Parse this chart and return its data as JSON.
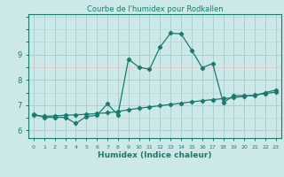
{
  "title": "Courbe de l'humidex pour Rodkallen",
  "xlabel": "Humidex (Indice chaleur)",
  "background_color": "#cce8e8",
  "line_color": "#1a7a6e",
  "grid_color_major": "#aad0d0",
  "grid_color_minor": "#e8c0c0",
  "xlim": [
    -0.5,
    23.5
  ],
  "ylim": [
    5.7,
    10.6
  ],
  "yticks": [
    6,
    7,
    8,
    9
  ],
  "curve1_x": [
    0,
    1,
    2,
    3,
    4,
    5,
    6,
    7,
    8,
    9,
    10,
    11,
    12,
    13,
    14,
    15,
    16,
    17,
    18,
    19,
    20,
    21,
    22,
    23
  ],
  "curve1_y": [
    6.65,
    6.52,
    6.52,
    6.52,
    6.28,
    6.55,
    6.6,
    7.05,
    6.62,
    8.82,
    8.5,
    8.42,
    9.3,
    9.85,
    9.82,
    9.18,
    8.48,
    8.65,
    7.1,
    7.38,
    7.38,
    7.38,
    7.5,
    7.6
  ],
  "curve2_x": [
    0,
    1,
    2,
    3,
    4,
    5,
    6,
    7,
    8,
    9,
    10,
    11,
    12,
    13,
    14,
    15,
    16,
    17,
    18,
    19,
    20,
    21,
    22,
    23
  ],
  "curve2_y": [
    6.6,
    6.56,
    6.58,
    6.6,
    6.62,
    6.64,
    6.67,
    6.7,
    6.75,
    6.82,
    6.88,
    6.93,
    6.98,
    7.03,
    7.08,
    7.13,
    7.18,
    7.22,
    7.26,
    7.3,
    7.35,
    7.4,
    7.46,
    7.52
  ]
}
